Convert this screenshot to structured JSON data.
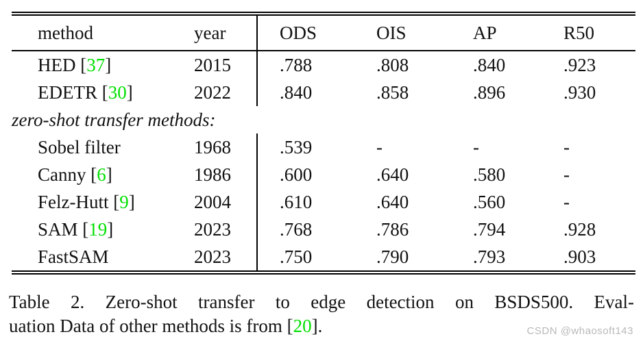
{
  "colors": {
    "citation_green": "#00e000",
    "watermark_gray": "#b9b9b9",
    "text_black": "#111111",
    "rule_black": "#000000",
    "background": "#ffffff"
  },
  "table": {
    "headers": {
      "method": "method",
      "year": "year",
      "ods": "ODS",
      "ois": "OIS",
      "ap": "AP",
      "r50": "R50"
    },
    "rows": [
      {
        "name": "HED",
        "cite_open": " [",
        "cite_num": "37",
        "cite_close": "]",
        "year": "2015",
        "ods": ".788",
        "ois": ".808",
        "ap": ".840",
        "r50": ".923"
      },
      {
        "name": "EDETR",
        "cite_open": " [",
        "cite_num": "30",
        "cite_close": "]",
        "year": "2022",
        "ods": ".840",
        "ois": ".858",
        "ap": ".896",
        "r50": ".930"
      },
      {
        "section": "zero-shot transfer methods:"
      },
      {
        "name": "Sobel filter",
        "year": "1968",
        "ods": ".539",
        "ois": "-",
        "ap": "-",
        "r50": "-"
      },
      {
        "name": "Canny",
        "cite_open": " [",
        "cite_num": "6",
        "cite_close": "]",
        "year": "1986",
        "ods": ".600",
        "ois": ".640",
        "ap": ".580",
        "r50": "-"
      },
      {
        "name": "Felz-Hutt",
        "cite_open": " [",
        "cite_num": "9",
        "cite_close": "]",
        "year": "2004",
        "ods": ".610",
        "ois": ".640",
        "ap": ".560",
        "r50": "-"
      },
      {
        "name": "SAM",
        "cite_open": " [",
        "cite_num": "19",
        "cite_close": "]",
        "year": "2023",
        "ods": ".768",
        "ois": ".786",
        "ap": ".794",
        "r50": ".928"
      },
      {
        "name": "FastSAM",
        "year": "2023",
        "ods": ".750",
        "ois": ".790",
        "ap": ".793",
        "r50": ".903"
      }
    ]
  },
  "caption": {
    "line1": "Table 2. Zero-shot transfer to edge detection on BSDS500. Eval-",
    "line2_prefix": "uation Data of other methods is from ",
    "cite_open": "[",
    "cite_num": "20",
    "cite_close": "]."
  },
  "watermark": "CSDN @whaosoft143"
}
